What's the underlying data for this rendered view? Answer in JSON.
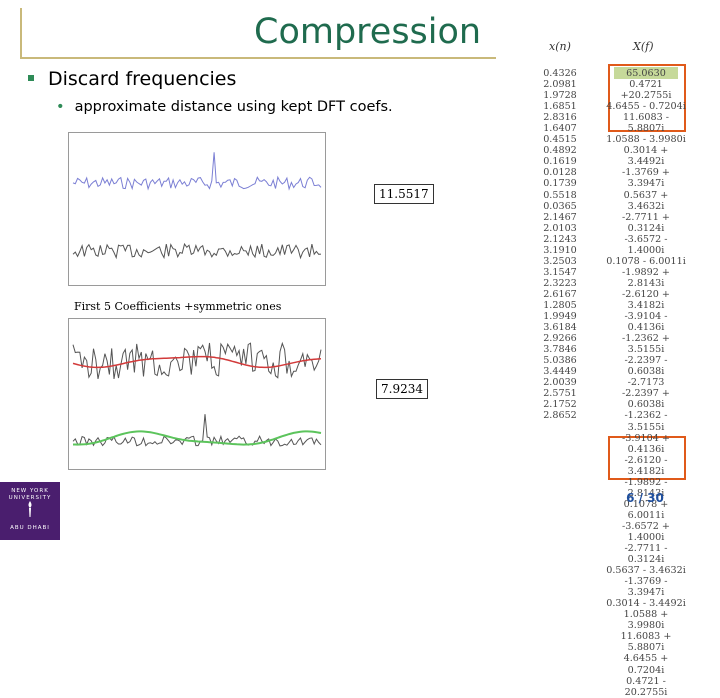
{
  "slide": {
    "title": "Compression",
    "bullet1": "Discard frequencies",
    "bullet2": "approximate distance using kept DFT coefs.",
    "distance1": "11.5517",
    "distance2": "7.9234",
    "caption": "First 5 Coefficients +symmetric ones",
    "page": "6 / 30"
  },
  "columns": {
    "xn_header": "x(n)",
    "xf_header": "X(f)",
    "xn": [
      "0.4326",
      "2.0981",
      "1.9728",
      "1.6851",
      "2.8316",
      "1.6407",
      "0.4515",
      "0.4892",
      "0.1619",
      "0.0128",
      "0.1739",
      "0.5518",
      "0.0365",
      "2.1467",
      "2.0103",
      "2.1243",
      "3.1910",
      "3.2503",
      "3.1547",
      "2.3223",
      "2.6167",
      "1.2805",
      "1.9949",
      "3.6184",
      "2.9266",
      "3.7846",
      "5.0386",
      "3.4449",
      "2.0039",
      "2.5751",
      "2.1752",
      "2.8652"
    ],
    "xf": [
      "65.0630",
      "0.4721 +20.2755i",
      "4.6455 - 0.7204i",
      "11.6083 - 5.8807i",
      "1.0588 - 3.9980i",
      "0.3014 + 3.4492i",
      "-1.3769 + 3.3947i",
      "0.5637 + 3.4632i",
      "-2.7711 + 0.3124i",
      "-3.6572 - 1.4000i",
      "0.1078 - 6.0011i",
      "-1.9892 + 2.8143i",
      "-2.6120 + 3.4182i",
      "-3.9104 - 0.4136i",
      "-1.2362 + 3.5155i",
      "-2.2397 - 0.6038i",
      "-2.7173",
      "-2.2397 + 0.6038i",
      "-1.2362 - 3.5155i",
      "-3.9104 + 0.4136i",
      "-2.6120 - 3.4182i",
      "-1.9892 - 2.8143i",
      "0.1078 + 6.0011i",
      "-3.6572 + 1.4000i",
      "-2.7711 - 0.3124i",
      "0.5637 - 3.4632i",
      "-1.3769 - 3.3947i",
      "0.3014 - 3.4492i",
      "1.0588 + 3.9980i",
      "11.6083 + 5.8807i",
      "4.6455 + 0.7204i",
      "0.4721 - 20.2755i"
    ]
  },
  "logo": {
    "line1": "NEW YORK",
    "line2": "UNIVERSITY",
    "line3": "ABU DHABI"
  },
  "colors": {
    "title": "#1f6b4e",
    "accent": "#2e8b57",
    "highlight_border": "#e05a1a",
    "highlight_fill": "#c6d99a",
    "series_blue": "#7b7fd4",
    "series_gray": "#555555",
    "series_red": "#d23a3a",
    "series_green": "#5cc45c"
  }
}
